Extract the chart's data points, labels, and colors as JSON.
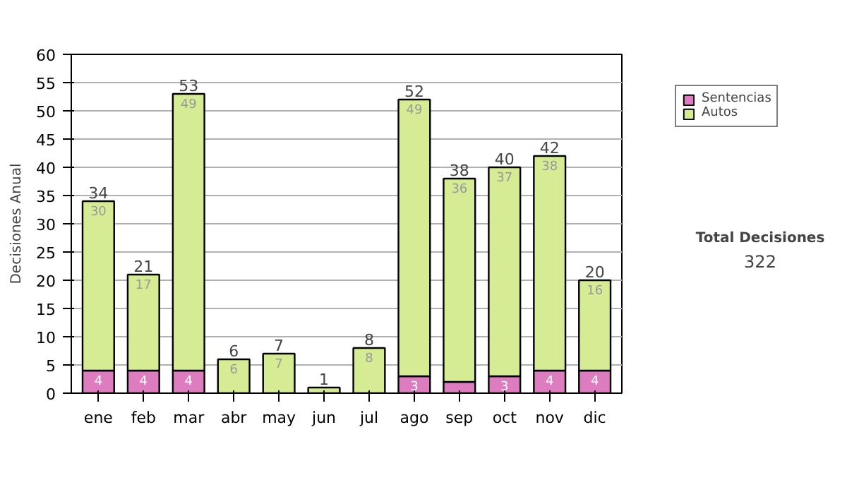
{
  "chart_data": {
    "type": "bar",
    "stacked": true,
    "ylabel": "Decisiones Anual",
    "categories": [
      "ene",
      "feb",
      "mar",
      "abr",
      "may",
      "jun",
      "jul",
      "ago",
      "sep",
      "oct",
      "nov",
      "dic"
    ],
    "series": [
      {
        "name": "Sentencias",
        "color": "#de7cc0",
        "values": [
          4,
          4,
          4,
          null,
          null,
          null,
          null,
          3,
          2,
          3,
          4,
          4
        ],
        "value_labels": [
          "4",
          "4",
          "4",
          null,
          null,
          null,
          null,
          "3",
          null,
          "3",
          "4",
          "4"
        ]
      },
      {
        "name": "Autos",
        "color": "#d6ec94",
        "values": [
          30,
          17,
          49,
          6,
          7,
          1,
          8,
          49,
          36,
          37,
          38,
          16
        ],
        "value_labels": [
          "30",
          "17",
          "49",
          "6",
          "7",
          null,
          "8",
          "49",
          "36",
          "37",
          "38",
          "16"
        ]
      }
    ],
    "totals": [
      "34",
      "21",
      "53",
      "6",
      "7",
      "1",
      "8",
      "52",
      "38",
      "40",
      "42",
      "20"
    ],
    "ylim": [
      0,
      60
    ],
    "yticks": [
      0,
      5,
      10,
      15,
      20,
      25,
      30,
      35,
      40,
      45,
      50,
      55,
      60
    ],
    "grid": "y",
    "legend": "right",
    "annotations": [
      "Total Decisiones",
      "322"
    ]
  }
}
